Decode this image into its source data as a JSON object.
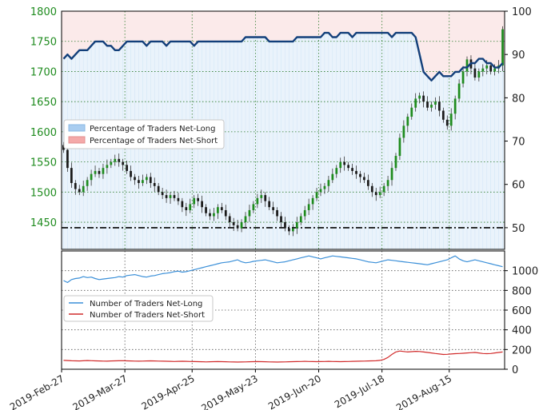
{
  "chart_data": [
    {
      "type": "candlestick",
      "panel": "top",
      "left_axis": {
        "ylim": [
          1405,
          1800
        ],
        "ticks": [
          1450,
          1500,
          1550,
          1600,
          1650,
          1700,
          1750,
          1800
        ],
        "color": "#1e8b1e"
      },
      "right_axis": {
        "ylim": [
          45,
          100
        ],
        "ticks": [
          50,
          60,
          70,
          80,
          90,
          100
        ]
      },
      "x_ticks": [
        "2019-Feb-27",
        "2019-Mar-27",
        "2019-Apr-25",
        "2019-May-23",
        "2019-Jun-20",
        "2019-Jul-18",
        "2019-Aug-15"
      ],
      "reference_line": {
        "value": 50,
        "axis": "right",
        "style": "dash-dot"
      },
      "legend": {
        "placement": "center-left",
        "entries": [
          {
            "label": "Percentage of Traders Net-Long",
            "color": "#a9cdf0"
          },
          {
            "label": "Percentage of Traders Net-Short",
            "color": "#f4a9a9"
          }
        ]
      },
      "price_close": [
        1570,
        1540,
        1515,
        1505,
        1500,
        1510,
        1520,
        1530,
        1535,
        1530,
        1540,
        1545,
        1550,
        1555,
        1550,
        1545,
        1535,
        1525,
        1520,
        1515,
        1520,
        1525,
        1515,
        1510,
        1500,
        1495,
        1490,
        1495,
        1490,
        1485,
        1475,
        1470,
        1480,
        1490,
        1485,
        1475,
        1465,
        1460,
        1465,
        1475,
        1470,
        1460,
        1450,
        1445,
        1440,
        1450,
        1460,
        1470,
        1480,
        1490,
        1495,
        1485,
        1475,
        1470,
        1460,
        1450,
        1440,
        1435,
        1440,
        1450,
        1460,
        1470,
        1480,
        1490,
        1500,
        1505,
        1510,
        1520,
        1530,
        1540,
        1550,
        1545,
        1540,
        1535,
        1530,
        1525,
        1520,
        1510,
        1500,
        1495,
        1500,
        1510,
        1520,
        1540,
        1560,
        1590,
        1610,
        1625,
        1640,
        1655,
        1660,
        1650,
        1640,
        1645,
        1650,
        1635,
        1620,
        1610,
        1630,
        1655,
        1680,
        1700,
        1720,
        1705,
        1690,
        1700,
        1705,
        1710,
        1700,
        1705,
        1710,
        1770
      ],
      "net_long_pct": [
        89,
        90,
        89,
        90,
        91,
        91,
        91,
        92,
        93,
        93,
        93,
        92,
        92,
        91,
        91,
        92,
        93,
        93,
        93,
        93,
        93,
        92,
        93,
        93,
        93,
        93,
        92,
        93,
        93,
        93,
        93,
        93,
        93,
        92,
        93,
        93,
        93,
        93,
        93,
        93,
        93,
        93,
        93,
        93,
        93,
        93,
        94,
        94,
        94,
        94,
        94,
        94,
        93,
        93,
        93,
        93,
        93,
        93,
        93,
        94,
        94,
        94,
        94,
        94,
        94,
        94,
        95,
        95,
        94,
        94,
        95,
        95,
        95,
        94,
        95,
        95,
        95,
        95,
        95,
        95,
        95,
        95,
        95,
        94,
        95,
        95,
        95,
        95,
        95,
        94,
        90,
        86,
        85,
        84,
        85,
        86,
        85,
        85,
        85,
        86,
        86,
        87,
        87,
        88,
        88,
        89,
        89,
        88,
        88,
        87,
        87,
        88
      ],
      "background": {
        "net_long_fill": "#eaf3fb",
        "net_short_fill": "#fbeaea"
      }
    },
    {
      "type": "line",
      "panel": "bottom",
      "ylim": [
        0,
        1200
      ],
      "y_ticks": [
        0,
        200,
        400,
        600,
        800,
        1000
      ],
      "legend": {
        "placement": "center-left"
      },
      "series": [
        {
          "name": "Number of Traders Net-Long",
          "color": "#3a8fd8",
          "values": [
            900,
            880,
            910,
            920,
            925,
            940,
            930,
            935,
            920,
            910,
            915,
            920,
            925,
            930,
            940,
            935,
            950,
            955,
            960,
            950,
            940,
            935,
            945,
            950,
            960,
            970,
            975,
            980,
            990,
            995,
            985,
            990,
            1000,
            1010,
            1020,
            1030,
            1040,
            1050,
            1060,
            1070,
            1080,
            1085,
            1090,
            1100,
            1110,
            1090,
            1080,
            1085,
            1095,
            1100,
            1105,
            1110,
            1100,
            1090,
            1080,
            1085,
            1090,
            1100,
            1110,
            1120,
            1130,
            1140,
            1150,
            1140,
            1130,
            1120,
            1130,
            1140,
            1150,
            1145,
            1140,
            1135,
            1130,
            1125,
            1120,
            1110,
            1100,
            1090,
            1085,
            1080,
            1090,
            1100,
            1110,
            1105,
            1100,
            1095,
            1090,
            1085,
            1080,
            1075,
            1070,
            1065,
            1060,
            1070,
            1080,
            1090,
            1100,
            1110,
            1130,
            1150,
            1120,
            1100,
            1090,
            1100,
            1110,
            1100,
            1090,
            1080,
            1070,
            1060,
            1050,
            1040
          ]
        },
        {
          "name": "Number of Traders Net-Short",
          "color": "#d12b2b",
          "values": [
            90,
            88,
            86,
            85,
            84,
            86,
            88,
            87,
            85,
            84,
            83,
            82,
            84,
            85,
            86,
            87,
            85,
            84,
            83,
            82,
            83,
            84,
            85,
            84,
            83,
            82,
            81,
            80,
            79,
            80,
            81,
            80,
            79,
            78,
            77,
            76,
            75,
            76,
            77,
            78,
            77,
            76,
            75,
            74,
            73,
            74,
            75,
            76,
            77,
            78,
            77,
            76,
            75,
            74,
            73,
            74,
            75,
            76,
            77,
            78,
            79,
            80,
            79,
            78,
            77,
            78,
            79,
            80,
            79,
            78,
            77,
            78,
            79,
            80,
            81,
            82,
            83,
            84,
            85,
            86,
            90,
            100,
            120,
            150,
            175,
            185,
            180,
            175,
            178,
            182,
            180,
            175,
            170,
            165,
            160,
            155,
            150,
            152,
            155,
            158,
            160,
            162,
            165,
            168,
            170,
            165,
            160,
            158,
            160,
            165,
            170,
            175
          ]
        }
      ]
    }
  ]
}
